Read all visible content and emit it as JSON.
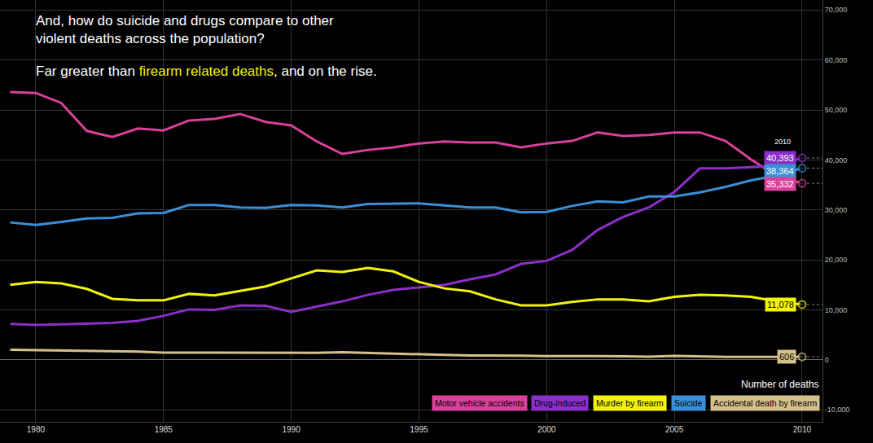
{
  "chart_data": {
    "type": "line",
    "title": "And, how do suicide and drugs compare to other violent deaths across the population?",
    "subtitle": [
      "Far greater than ",
      "firearm related deaths",
      ", and on the rise."
    ],
    "y_label": "Number of deaths",
    "annotations": [
      {
        "text": "2010",
        "x": 2010
      }
    ],
    "x": [
      1979,
      1980,
      1981,
      1982,
      1983,
      1984,
      1985,
      1986,
      1987,
      1988,
      1989,
      1990,
      1991,
      1992,
      1993,
      1994,
      1995,
      1996,
      1997,
      1998,
      1999,
      2000,
      2001,
      2002,
      2003,
      2004,
      2005,
      2006,
      2007,
      2008,
      2009,
      2010
    ],
    "xlim": [
      1978.6,
      2010.8
    ],
    "xticks": [
      1980,
      1985,
      1990,
      1995,
      2000,
      2005,
      2010
    ],
    "ylim": [
      -12400,
      72000
    ],
    "yticks": [
      {
        "value": -10000,
        "label": "-10,000"
      },
      0,
      {
        "value": 10000,
        "label": "10,000"
      },
      {
        "value": 20000,
        "label": "20,000"
      },
      {
        "value": 30000,
        "label": "30,000"
      },
      {
        "value": 40000,
        "label": "40,000"
      },
      {
        "value": 50000,
        "label": "50,000"
      },
      {
        "value": 60000,
        "label": "60,000"
      },
      {
        "value": 70000,
        "label": "70,000"
      }
    ],
    "grid": true,
    "legend": "bottom right",
    "series": [
      {
        "name": "Motor vehicle accidents",
        "color": "#d9409a",
        "values": [
          53600,
          53400,
          51400,
          45800,
          44600,
          46300,
          45900,
          47900,
          48200,
          49200,
          47600,
          46900,
          43700,
          41200,
          42000,
          42500,
          43300,
          43700,
          43500,
          43500,
          42500,
          43300,
          43800,
          45500,
          44800,
          45000,
          45500,
          45500,
          43800,
          40100,
          36800,
          35332
        ],
        "value_labels": [
          null,
          null,
          null,
          null,
          null,
          null,
          null,
          null,
          null,
          null,
          null,
          null,
          null,
          null,
          null,
          null,
          null,
          null,
          null,
          null,
          null,
          null,
          null,
          null,
          null,
          null,
          null,
          null,
          null,
          null,
          null,
          "35,332"
        ]
      },
      {
        "name": "Drug-induced",
        "color": "#8b2fc9",
        "values": [
          7200,
          7000,
          7100,
          7300,
          7400,
          7800,
          8800,
          10100,
          10000,
          10900,
          10800,
          9600,
          10600,
          11700,
          13000,
          14000,
          14500,
          15000,
          16100,
          17100,
          19200,
          19800,
          22000,
          26000,
          28600,
          30500,
          33600,
          38300,
          38300,
          38600,
          38800,
          40393
        ],
        "value_labels": [
          null,
          null,
          null,
          null,
          null,
          null,
          null,
          null,
          null,
          null,
          null,
          null,
          null,
          null,
          null,
          null,
          null,
          null,
          null,
          null,
          null,
          null,
          null,
          null,
          null,
          null,
          null,
          null,
          null,
          null,
          null,
          "40,393"
        ]
      },
      {
        "name": "Murder by firearm",
        "color": "#f2f20a",
        "values": [
          15000,
          15600,
          15300,
          14200,
          12200,
          11900,
          11900,
          13200,
          12900,
          13800,
          14700,
          16300,
          17900,
          17600,
          18400,
          17700,
          15600,
          14300,
          13700,
          12100,
          10900,
          10900,
          11600,
          12100,
          12100,
          11700,
          12600,
          13000,
          12900,
          12600,
          11700,
          11078
        ],
        "value_labels": [
          null,
          null,
          null,
          null,
          null,
          null,
          null,
          null,
          null,
          null,
          null,
          null,
          null,
          null,
          null,
          null,
          null,
          null,
          null,
          null,
          null,
          null,
          null,
          null,
          null,
          null,
          null,
          null,
          null,
          null,
          null,
          "11,078"
        ]
      },
      {
        "name": "Suicide",
        "color": "#3a8fd6",
        "values": [
          27500,
          27000,
          27600,
          28300,
          28400,
          29300,
          29400,
          31000,
          31000,
          30500,
          30400,
          31000,
          30900,
          30500,
          31200,
          31200,
          31300,
          30900,
          30500,
          30500,
          29500,
          29600,
          30800,
          31700,
          31500,
          32700,
          32700,
          33500,
          34600,
          35900,
          36900,
          38364
        ],
        "value_labels": [
          null,
          null,
          null,
          null,
          null,
          null,
          null,
          null,
          null,
          null,
          null,
          null,
          null,
          null,
          null,
          null,
          null,
          null,
          null,
          null,
          null,
          null,
          null,
          null,
          null,
          null,
          null,
          null,
          null,
          null,
          null,
          "38,364"
        ]
      },
      {
        "name": "Accidental death by firearm",
        "color": "#d4c08a",
        "values": [
          2000,
          1955,
          1871,
          1756,
          1695,
          1668,
          1452,
          1440,
          1501,
          1489,
          1416,
          1441,
          1409,
          1521,
          1356,
          1225,
          1134,
          981,
          866,
          904,
          824,
          776,
          802,
          762,
          730,
          649,
          789,
          642,
          613,
          592,
          554,
          606
        ],
        "value_labels": [
          null,
          null,
          null,
          null,
          null,
          null,
          null,
          null,
          null,
          null,
          null,
          null,
          null,
          null,
          null,
          null,
          null,
          null,
          null,
          null,
          null,
          null,
          null,
          null,
          null,
          null,
          null,
          null,
          null,
          null,
          null,
          "606"
        ]
      }
    ]
  }
}
